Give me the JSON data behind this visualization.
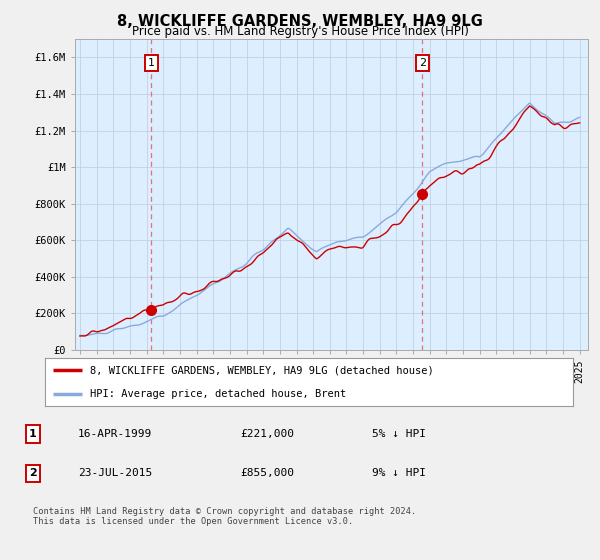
{
  "title": "8, WICKLIFFE GARDENS, WEMBLEY, HA9 9LG",
  "subtitle": "Price paid vs. HM Land Registry's House Price Index (HPI)",
  "ylim": [
    0,
    1700000
  ],
  "yticks": [
    0,
    200000,
    400000,
    600000,
    800000,
    1000000,
    1200000,
    1400000,
    1600000
  ],
  "ytick_labels": [
    "£0",
    "£200K",
    "£400K",
    "£600K",
    "£800K",
    "£1M",
    "£1.2M",
    "£1.4M",
    "£1.6M"
  ],
  "background_color": "#f0f0f0",
  "plot_background": "#ddeeff",
  "hpi_color": "#88aadd",
  "sale_color": "#cc0000",
  "marker1_date": 1999.29,
  "marker1_value": 221000,
  "marker2_date": 2015.55,
  "marker2_value": 855000,
  "legend_entries": [
    {
      "label": "8, WICKLIFFE GARDENS, WEMBLEY, HA9 9LG (detached house)",
      "color": "#cc0000"
    },
    {
      "label": "HPI: Average price, detached house, Brent",
      "color": "#88aadd"
    }
  ],
  "table_rows": [
    {
      "num": "1",
      "date": "16-APR-1999",
      "price": "£221,000",
      "note": "5% ↓ HPI"
    },
    {
      "num": "2",
      "date": "23-JUL-2015",
      "price": "£855,000",
      "note": "9% ↓ HPI"
    }
  ],
  "footer": "Contains HM Land Registry data © Crown copyright and database right 2024.\nThis data is licensed under the Open Government Licence v3.0.",
  "vline1_x": 1999.29,
  "vline2_x": 2015.55,
  "xmin": 1994.7,
  "xmax": 2025.5
}
